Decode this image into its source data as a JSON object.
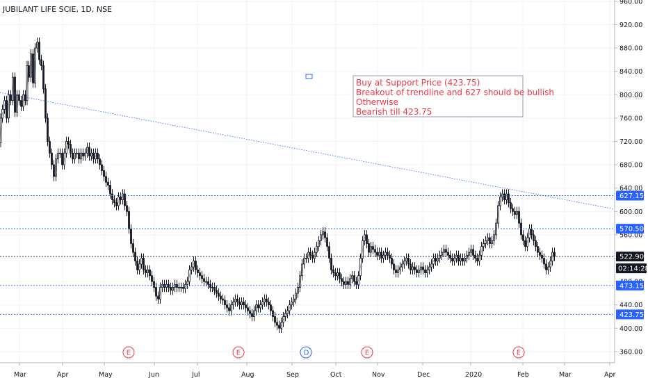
{
  "chart_data": {
    "type": "candlestick",
    "title": "JUBILANT LIFE SCIE, 1D, NSE",
    "y_axis": {
      "range": [
        340,
        960
      ],
      "ticks": [
        360,
        400,
        440,
        480,
        520,
        560,
        600,
        640,
        680,
        720,
        760,
        800,
        840,
        880,
        920,
        960
      ],
      "tick_labels": [
        "360.00",
        "400.00",
        "440.00",
        "480.00",
        "520.00",
        "560.00",
        "600.00",
        "640.00",
        "680.00",
        "720.00",
        "760.00",
        "800.00",
        "840.00",
        "880.00",
        "920.00",
        "960.00"
      ]
    },
    "x_axis": {
      "tick_labels": [
        "Mar",
        "Apr",
        "May",
        "Jun",
        "Jul",
        "Aug",
        "Sep",
        "Oct",
        "Nov",
        "Dec",
        "2020",
        "Feb",
        "Mar",
        "Apr"
      ]
    },
    "price_line_points": [
      [
        0,
        718
      ],
      [
        2,
        760
      ],
      [
        5,
        775
      ],
      [
        8,
        790
      ],
      [
        11,
        760
      ],
      [
        14,
        800
      ],
      [
        17,
        790
      ],
      [
        20,
        830
      ],
      [
        23,
        770
      ],
      [
        26,
        800
      ],
      [
        29,
        790
      ],
      [
        32,
        780
      ],
      [
        35,
        800
      ],
      [
        38,
        790
      ],
      [
        40,
        850
      ],
      [
        43,
        830
      ],
      [
        46,
        870
      ],
      [
        49,
        820
      ],
      [
        52,
        880
      ],
      [
        55,
        890
      ],
      [
        58,
        860
      ],
      [
        61,
        850
      ],
      [
        64,
        810
      ],
      [
        67,
        760
      ],
      [
        70,
        720
      ],
      [
        73,
        700
      ],
      [
        76,
        680
      ],
      [
        79,
        660
      ],
      [
        82,
        690
      ],
      [
        85,
        700
      ],
      [
        88,
        700
      ],
      [
        91,
        680
      ],
      [
        94,
        700
      ],
      [
        97,
        720
      ],
      [
        100,
        715
      ],
      [
        103,
        700
      ],
      [
        106,
        690
      ],
      [
        109,
        700
      ],
      [
        112,
        700
      ],
      [
        115,
        690
      ],
      [
        118,
        700
      ],
      [
        121,
        695
      ],
      [
        124,
        700
      ],
      [
        127,
        710
      ],
      [
        130,
        695
      ],
      [
        133,
        700
      ],
      [
        136,
        690
      ],
      [
        139,
        700
      ],
      [
        142,
        690
      ],
      [
        145,
        680
      ],
      [
        148,
        670
      ],
      [
        151,
        660
      ],
      [
        154,
        650
      ],
      [
        157,
        645
      ],
      [
        160,
        630
      ],
      [
        163,
        620
      ],
      [
        166,
        615
      ],
      [
        169,
        610
      ],
      [
        172,
        625
      ],
      [
        175,
        620
      ],
      [
        178,
        630
      ],
      [
        181,
        610
      ],
      [
        184,
        600
      ],
      [
        187,
        570
      ],
      [
        190,
        545
      ],
      [
        193,
        530
      ],
      [
        196,
        515
      ],
      [
        199,
        500
      ],
      [
        202,
        510
      ],
      [
        205,
        520
      ],
      [
        208,
        500
      ],
      [
        211,
        495
      ],
      [
        214,
        500
      ],
      [
        217,
        490
      ],
      [
        220,
        480
      ],
      [
        223,
        470
      ],
      [
        226,
        455
      ],
      [
        229,
        450
      ],
      [
        232,
        470
      ],
      [
        235,
        475
      ],
      [
        238,
        470
      ],
      [
        241,
        475
      ],
      [
        244,
        470
      ],
      [
        247,
        465
      ],
      [
        250,
        470
      ],
      [
        253,
        475
      ],
      [
        256,
        470
      ],
      [
        259,
        470
      ],
      [
        262,
        470
      ],
      [
        265,
        468
      ],
      [
        268,
        475
      ],
      [
        271,
        480
      ],
      [
        274,
        500
      ],
      [
        277,
        505
      ],
      [
        280,
        515
      ],
      [
        283,
        500
      ],
      [
        286,
        495
      ],
      [
        289,
        490
      ],
      [
        292,
        485
      ],
      [
        295,
        480
      ],
      [
        298,
        480
      ],
      [
        301,
        475
      ],
      [
        304,
        470
      ],
      [
        307,
        470
      ],
      [
        310,
        465
      ],
      [
        313,
        460
      ],
      [
        316,
        455
      ],
      [
        319,
        450
      ],
      [
        322,
        448
      ],
      [
        325,
        440
      ],
      [
        328,
        435
      ],
      [
        331,
        430
      ],
      [
        334,
        440
      ],
      [
        337,
        445
      ],
      [
        340,
        450
      ],
      [
        343,
        445
      ],
      [
        346,
        440
      ],
      [
        349,
        445
      ],
      [
        352,
        440
      ],
      [
        355,
        435
      ],
      [
        358,
        430
      ],
      [
        361,
        425
      ],
      [
        364,
        420
      ],
      [
        367,
        430
      ],
      [
        370,
        440
      ],
      [
        373,
        435
      ],
      [
        376,
        440
      ],
      [
        379,
        445
      ],
      [
        382,
        450
      ],
      [
        385,
        445
      ],
      [
        388,
        440
      ],
      [
        391,
        430
      ],
      [
        394,
        420
      ],
      [
        397,
        410
      ],
      [
        400,
        405
      ],
      [
        403,
        400
      ],
      [
        406,
        410
      ],
      [
        409,
        420
      ],
      [
        412,
        425
      ],
      [
        415,
        430
      ],
      [
        418,
        440
      ],
      [
        421,
        445
      ],
      [
        424,
        450
      ],
      [
        427,
        460
      ],
      [
        430,
        470
      ],
      [
        433,
        490
      ],
      [
        436,
        510
      ],
      [
        439,
        520
      ],
      [
        442,
        520
      ],
      [
        445,
        530
      ],
      [
        448,
        525
      ],
      [
        451,
        520
      ],
      [
        454,
        530
      ],
      [
        457,
        540
      ],
      [
        460,
        550
      ],
      [
        463,
        560
      ],
      [
        466,
        565
      ],
      [
        469,
        555
      ],
      [
        472,
        540
      ],
      [
        475,
        520
      ],
      [
        478,
        500
      ],
      [
        481,
        495
      ],
      [
        484,
        490
      ],
      [
        487,
        495
      ],
      [
        490,
        485
      ],
      [
        493,
        480
      ],
      [
        496,
        475
      ],
      [
        499,
        480
      ],
      [
        502,
        475
      ],
      [
        505,
        485
      ],
      [
        508,
        490
      ],
      [
        511,
        480
      ],
      [
        514,
        475
      ],
      [
        517,
        490
      ],
      [
        520,
        520
      ],
      [
        523,
        550
      ],
      [
        526,
        560
      ],
      [
        529,
        545
      ],
      [
        532,
        530
      ],
      [
        535,
        540
      ],
      [
        538,
        535
      ],
      [
        541,
        530
      ],
      [
        544,
        525
      ],
      [
        547,
        530
      ],
      [
        550,
        520
      ],
      [
        553,
        525
      ],
      [
        556,
        530
      ],
      [
        559,
        525
      ],
      [
        562,
        520
      ],
      [
        565,
        510
      ],
      [
        568,
        500
      ],
      [
        571,
        495
      ],
      [
        574,
        500
      ],
      [
        577,
        505
      ],
      [
        580,
        510
      ],
      [
        583,
        515
      ],
      [
        586,
        520
      ],
      [
        589,
        510
      ],
      [
        592,
        500
      ],
      [
        595,
        505
      ],
      [
        598,
        500
      ],
      [
        601,
        495
      ],
      [
        604,
        500
      ],
      [
        607,
        505
      ],
      [
        610,
        500
      ],
      [
        613,
        495
      ],
      [
        616,
        500
      ],
      [
        619,
        505
      ],
      [
        622,
        510
      ],
      [
        625,
        520
      ],
      [
        628,
        515
      ],
      [
        631,
        520
      ],
      [
        634,
        525
      ],
      [
        637,
        530
      ],
      [
        640,
        535
      ],
      [
        643,
        530
      ],
      [
        646,
        525
      ],
      [
        649,
        520
      ],
      [
        652,
        515
      ],
      [
        655,
        520
      ],
      [
        658,
        525
      ],
      [
        661,
        515
      ],
      [
        664,
        520
      ],
      [
        667,
        515
      ],
      [
        670,
        520
      ],
      [
        673,
        525
      ],
      [
        676,
        530
      ],
      [
        679,
        535
      ],
      [
        682,
        525
      ],
      [
        685,
        520
      ],
      [
        688,
        515
      ],
      [
        691,
        525
      ],
      [
        694,
        540
      ],
      [
        697,
        545
      ],
      [
        700,
        550
      ],
      [
        703,
        555
      ],
      [
        706,
        545
      ],
      [
        709,
        550
      ],
      [
        712,
        560
      ],
      [
        715,
        580
      ],
      [
        718,
        610
      ],
      [
        721,
        625
      ],
      [
        724,
        630
      ],
      [
        727,
        620
      ],
      [
        730,
        630
      ],
      [
        733,
        615
      ],
      [
        736,
        605
      ],
      [
        739,
        600
      ],
      [
        742,
        595
      ],
      [
        745,
        600
      ],
      [
        748,
        580
      ],
      [
        751,
        560
      ],
      [
        754,
        550
      ],
      [
        757,
        540
      ],
      [
        760,
        555
      ],
      [
        763,
        570
      ],
      [
        766,
        560
      ],
      [
        769,
        550
      ],
      [
        772,
        540
      ],
      [
        775,
        530
      ],
      [
        778,
        525
      ],
      [
        781,
        520
      ],
      [
        784,
        510
      ],
      [
        787,
        500
      ],
      [
        790,
        505
      ],
      [
        793,
        515
      ],
      [
        796,
        530
      ],
      [
        799,
        522.9
      ]
    ],
    "horizontal_lines": [
      {
        "value": 627.15,
        "label": "627.15",
        "color": "#2962ff"
      },
      {
        "value": 570.5,
        "label": "570.50",
        "color": "#2962ff"
      },
      {
        "value": 522.9,
        "label": "522.90",
        "color": "#131722"
      },
      {
        "value": 473.15,
        "label": "473.15",
        "color": "#2962ff"
      },
      {
        "value": 423.75,
        "label": "423.75",
        "color": "#2962ff"
      }
    ],
    "timer_label": "02:14:28",
    "annotation_lines": [
      "Buy at Support Price (423.75)",
      "Breakout of trendline and 627 should be bullish",
      "Otherwise",
      "Bearish till 423.75"
    ],
    "event_markers": [
      "E",
      "E",
      "D",
      "E",
      "E"
    ],
    "colors": {
      "level_line": "#2962ff",
      "price_line": "#131722",
      "candle": "#131722",
      "note_text": "#f23645",
      "note_border": "#8e9eb5",
      "event_E": "#f23645",
      "event_D": "#2962ff",
      "axis_line": "#b2b5be",
      "grid": "#f0f3fa"
    }
  }
}
